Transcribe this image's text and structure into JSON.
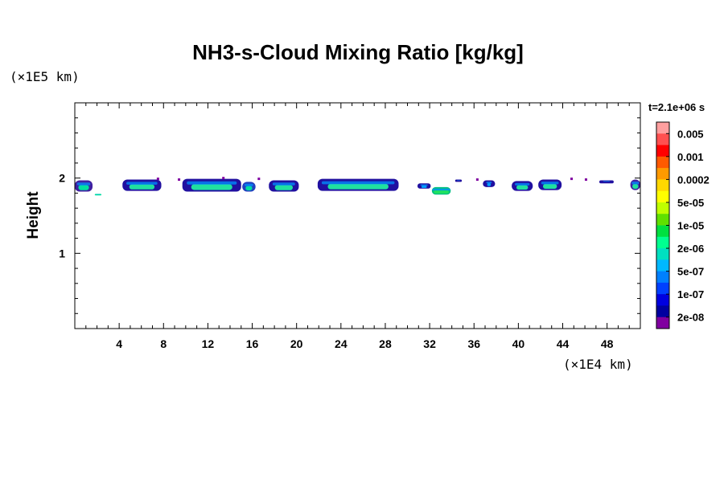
{
  "chart_data": {
    "type": "heatmap",
    "title": "NH3-s-Cloud Mixing Ratio [kg/kg]",
    "ylabel": "Height",
    "xlabel": "",
    "x_unit": "(×1E4 km)",
    "y_unit": "(×1E5 km)",
    "time_label": "t=2.1e+06 s",
    "xlim": [
      0,
      51
    ],
    "ylim": [
      0,
      3
    ],
    "x_ticks": [
      "4",
      "8",
      "12",
      "16",
      "20",
      "24",
      "28",
      "32",
      "36",
      "40",
      "44",
      "48"
    ],
    "x_tick_values": [
      4,
      8,
      12,
      16,
      20,
      24,
      28,
      32,
      36,
      40,
      44,
      48
    ],
    "y_ticks": [
      "1",
      "2"
    ],
    "y_tick_values": [
      1,
      2
    ],
    "colorbar": {
      "labels": [
        "0.005",
        "0.001",
        "0.0002",
        "5e-05",
        "1e-05",
        "2e-06",
        "5e-07",
        "1e-07",
        "2e-08"
      ],
      "colors": [
        "#ff9f9f",
        "#ff5050",
        "#ff0000",
        "#ff5a00",
        "#ff9a00",
        "#ffd800",
        "#ffff00",
        "#c0ff00",
        "#60e000",
        "#00e040",
        "#00ff90",
        "#00e0c0",
        "#00b8ff",
        "#0080ff",
        "#0040ff",
        "#0000e0",
        "#0000a0",
        "#8000a0"
      ]
    },
    "cloud_patches": [
      {
        "x": [
          0.0,
          1.6
        ],
        "y": [
          1.82,
          1.97
        ],
        "core": 0.6,
        "color_outer": "#4020a0",
        "color_inner": "#00e0a0"
      },
      {
        "x": [
          1.8,
          2.4
        ],
        "y": [
          1.77,
          1.79
        ],
        "core": 0.5,
        "color_outer": "#00e0a0",
        "color_inner": "#00e0a0"
      },
      {
        "x": [
          4.3,
          7.8
        ],
        "y": [
          1.83,
          1.98
        ],
        "core": 0.65,
        "color_outer": "#2010a0",
        "color_inner": "#20e0a0"
      },
      {
        "x": [
          9.7,
          15.0
        ],
        "y": [
          1.82,
          1.99
        ],
        "core": 0.7,
        "color_outer": "#2010a0",
        "color_inner": "#20e0a0"
      },
      {
        "x": [
          15.1,
          16.3
        ],
        "y": [
          1.82,
          1.95
        ],
        "core": 0.5,
        "color_outer": "#2040c0",
        "color_inner": "#00e0a0"
      },
      {
        "x": [
          17.5,
          20.2
        ],
        "y": [
          1.82,
          1.97
        ],
        "core": 0.6,
        "color_outer": "#2010a0",
        "color_inner": "#20e0a0"
      },
      {
        "x": [
          21.9,
          29.2
        ],
        "y": [
          1.83,
          1.99
        ],
        "core": 0.75,
        "color_outer": "#2010a0",
        "color_inner": "#20e0a0"
      },
      {
        "x": [
          30.9,
          32.1
        ],
        "y": [
          1.86,
          1.93
        ],
        "core": 0.4,
        "color_outer": "#2010a0",
        "color_inner": "#00a0ff"
      },
      {
        "x": [
          32.2,
          33.9
        ],
        "y": [
          1.78,
          1.88
        ],
        "core": 0.8,
        "color_outer": "#00c080",
        "color_inner": "#20e060"
      },
      {
        "x": [
          34.3,
          34.9
        ],
        "y": [
          1.95,
          1.98
        ],
        "core": 0.3,
        "color_outer": "#2010a0",
        "color_inner": "#2010a0"
      },
      {
        "x": [
          36.8,
          37.9
        ],
        "y": [
          1.88,
          1.97
        ],
        "core": 0.3,
        "color_outer": "#2010a0",
        "color_inner": "#00a0ff"
      },
      {
        "x": [
          39.4,
          41.3
        ],
        "y": [
          1.83,
          1.96
        ],
        "core": 0.55,
        "color_outer": "#2010a0",
        "color_inner": "#20e0a0"
      },
      {
        "x": [
          41.8,
          43.9
        ],
        "y": [
          1.84,
          1.98
        ],
        "core": 0.6,
        "color_outer": "#2010a0",
        "color_inner": "#20e0a0"
      },
      {
        "x": [
          47.3,
          48.6
        ],
        "y": [
          1.93,
          1.97
        ],
        "core": 0.3,
        "color_outer": "#2010a0",
        "color_inner": "#2010a0"
      },
      {
        "x": [
          50.1,
          51.0
        ],
        "y": [
          1.84,
          1.98
        ],
        "core": 0.6,
        "color_outer": "#4020a0",
        "color_inner": "#20e0a0"
      }
    ],
    "cloud_specks": [
      {
        "x": 7.5,
        "y": 1.99,
        "color": "#8000a0"
      },
      {
        "x": 9.4,
        "y": 1.98,
        "color": "#8000a0"
      },
      {
        "x": 13.4,
        "y": 2.0,
        "color": "#8000a0"
      },
      {
        "x": 16.6,
        "y": 1.99,
        "color": "#8000a0"
      },
      {
        "x": 36.3,
        "y": 1.98,
        "color": "#8000a0"
      },
      {
        "x": 44.8,
        "y": 1.99,
        "color": "#8000a0"
      },
      {
        "x": 46.1,
        "y": 1.98,
        "color": "#8000a0"
      }
    ]
  }
}
